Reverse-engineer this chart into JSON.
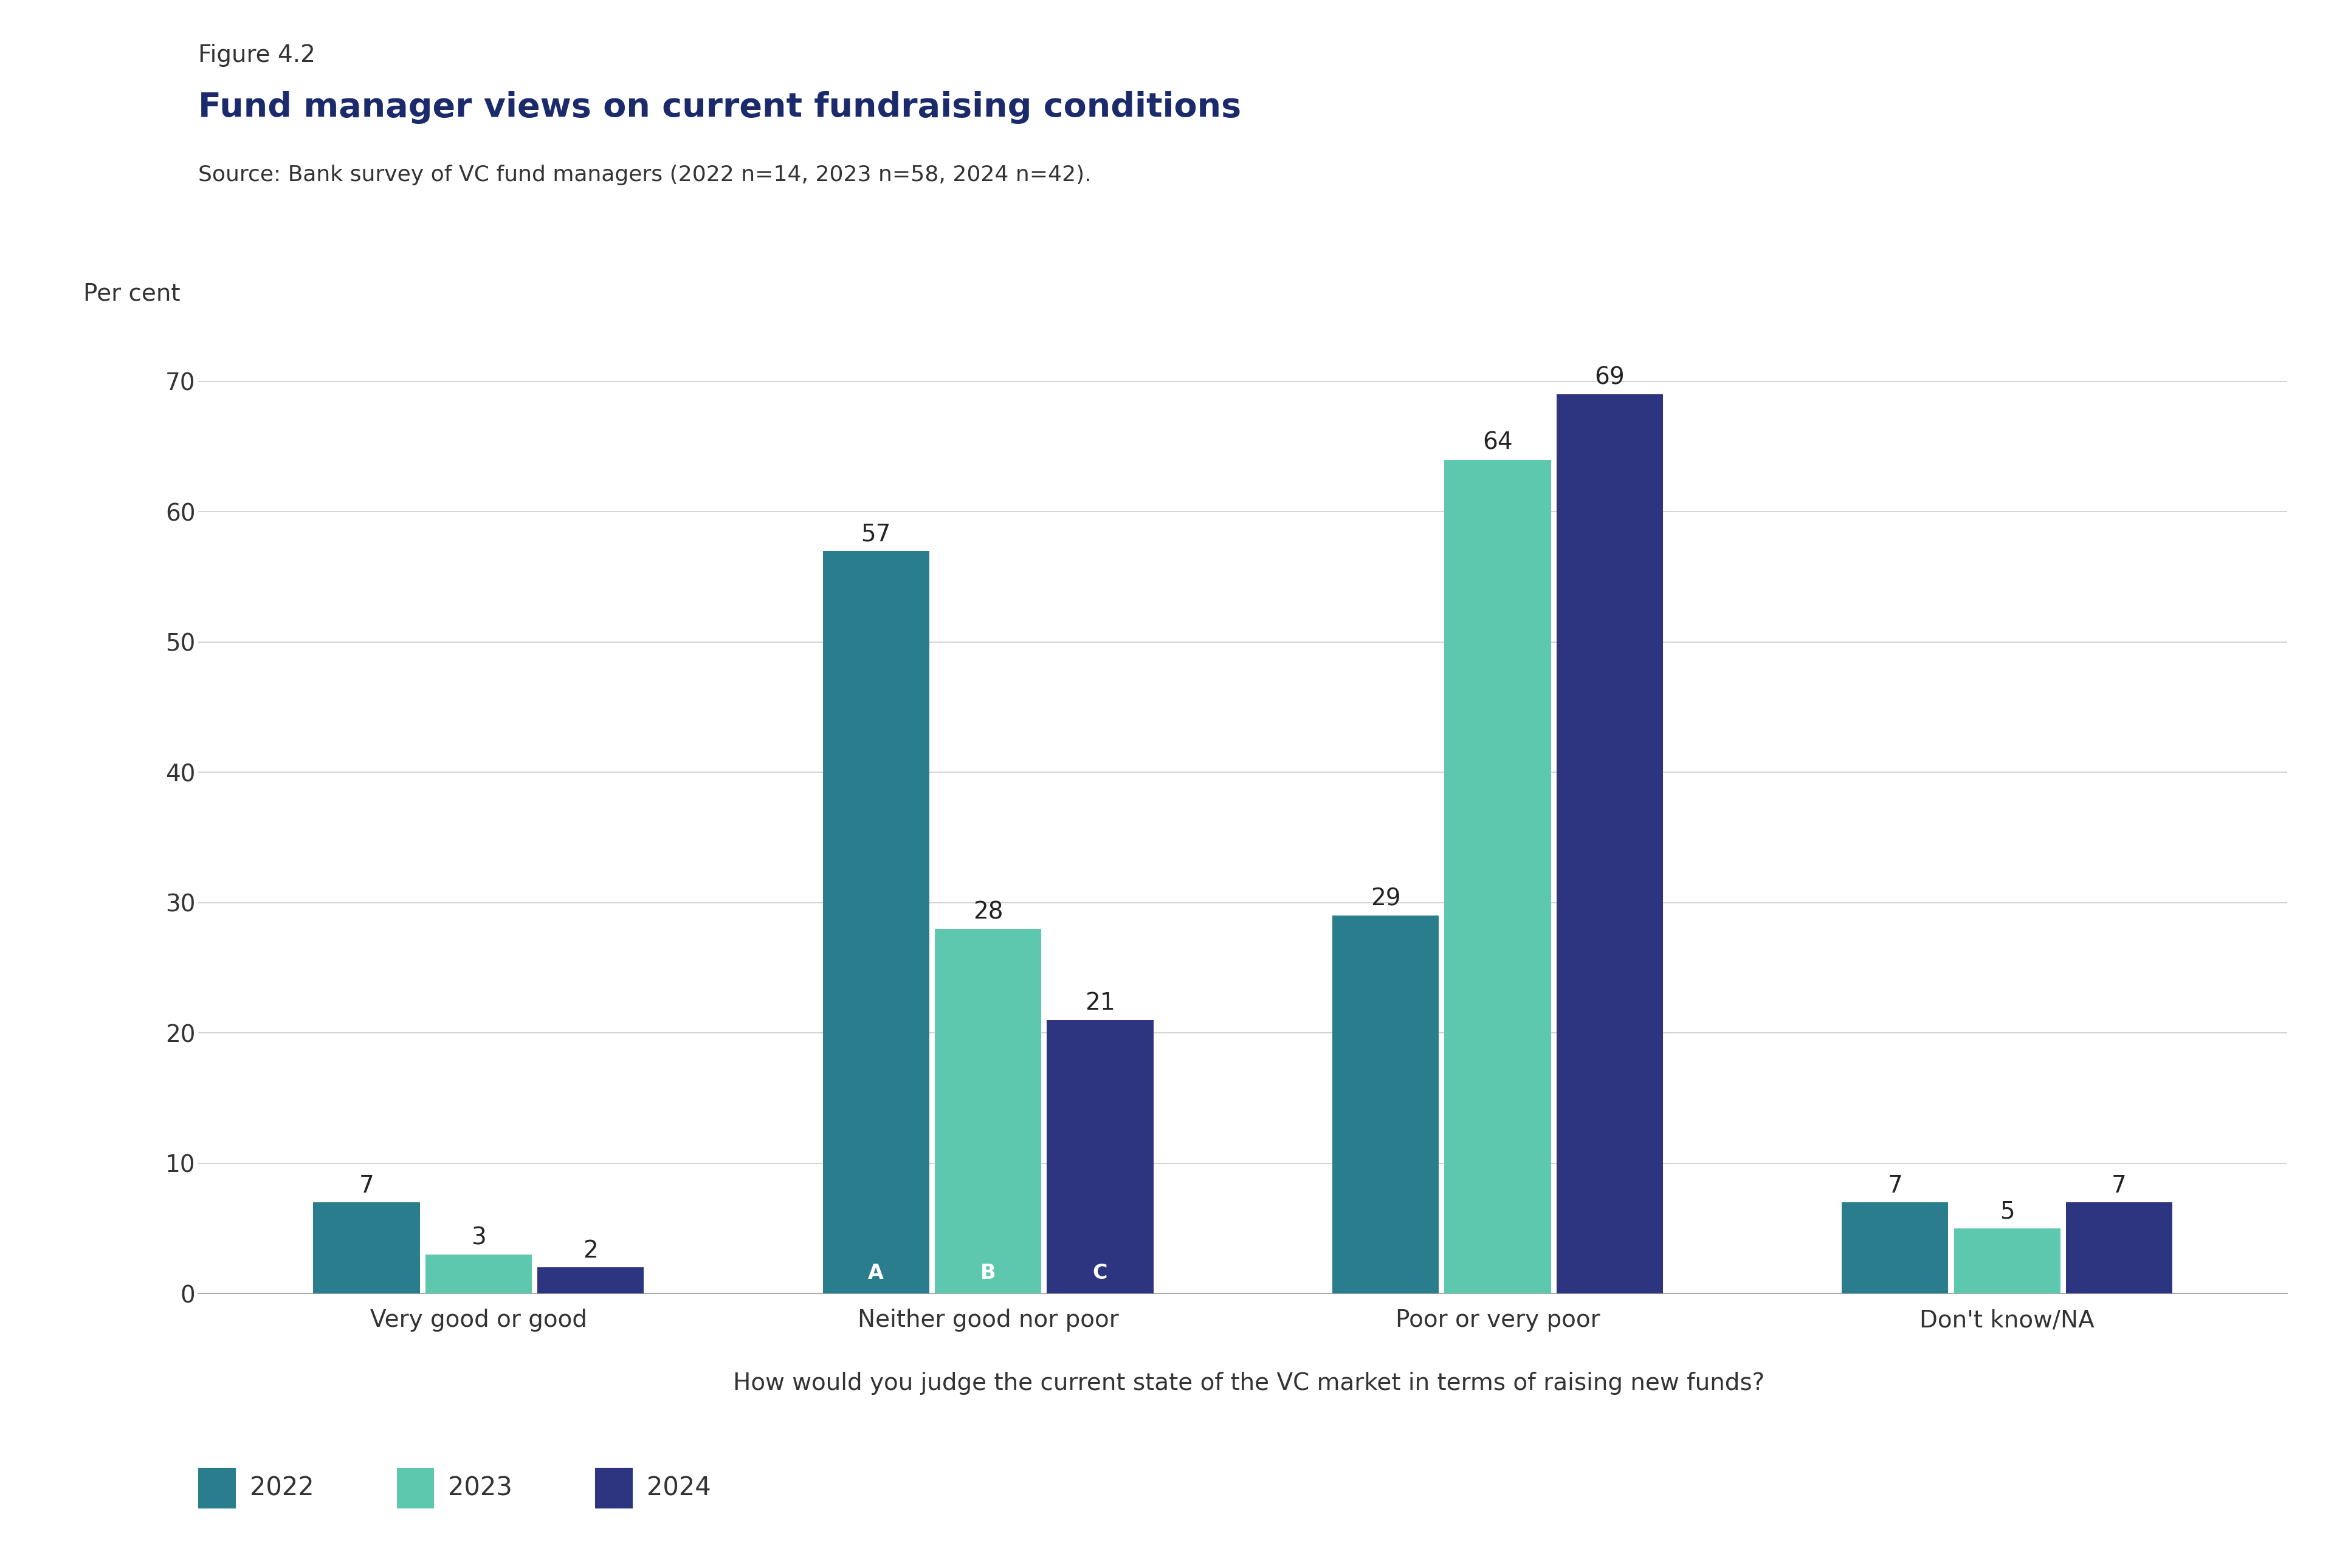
{
  "figure_label": "Figure 4.2",
  "title": "Fund manager views on current fundraising conditions",
  "source": "Source: Bank survey of VC fund managers (2022 n=14, 2023 n=58, 2024 n=42).",
  "ylabel": "Per cent",
  "xlabel": "How would you judge the current state of the VC market in terms of raising new funds?",
  "categories": [
    "Very good or good",
    "Neither good nor poor",
    "Poor or very poor",
    "Don't know/NA"
  ],
  "series_keys": [
    "2022",
    "2023",
    "2024"
  ],
  "series": {
    "2022": [
      7,
      57,
      29,
      7
    ],
    "2023": [
      3,
      28,
      64,
      5
    ],
    "2024": [
      2,
      21,
      69,
      7
    ]
  },
  "colors": {
    "2022": "#2a7d8c",
    "2023": "#5dc8ad",
    "2024": "#2d3580"
  },
  "bar_letters": {
    "2022": "A",
    "2023": "B",
    "2024": "C"
  },
  "ylim": [
    0,
    74
  ],
  "yticks": [
    0,
    10,
    20,
    30,
    40,
    50,
    60,
    70
  ],
  "bar_width": 0.22,
  "fig_bg": "#ffffff",
  "plot_bg": "#ffffff",
  "title_color": "#1b2a6b",
  "label_color": "#333333",
  "grid_color": "#cccccc",
  "axis_color": "#aaaaaa",
  "value_label_fontsize": 28,
  "tick_fontsize": 28,
  "ylabel_fontsize": 28,
  "xlabel_fontsize": 28,
  "title_fontsize": 40,
  "figure_label_fontsize": 28,
  "source_fontsize": 26,
  "letter_inside_fontsize": 24,
  "legend_fontsize": 30
}
